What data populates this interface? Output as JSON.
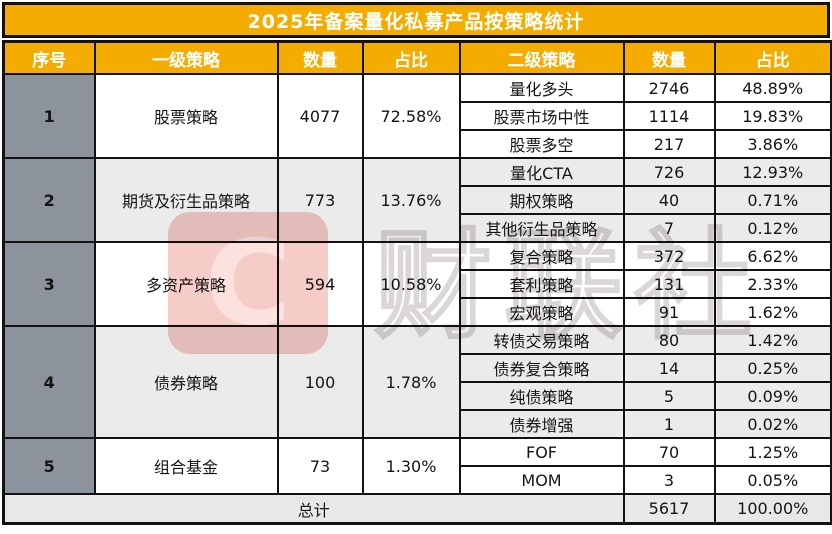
{
  "chart_data": {
    "type": "table",
    "title": "2025年备案量化私募产品按策略统计",
    "columns": [
      "序号",
      "一级策略",
      "数量",
      "占比",
      "二级策略",
      "数量",
      "占比"
    ],
    "groups": [
      {
        "no": "1",
        "strategy": "股票策略",
        "count": 4077,
        "share": "72.58%",
        "subs": [
          [
            "量化多头",
            2746,
            "48.89%"
          ],
          [
            "股票市场中性",
            1114,
            "19.83%"
          ],
          [
            "股票多空",
            217,
            "3.86%"
          ]
        ]
      },
      {
        "no": "2",
        "strategy": "期货及衍生品策略",
        "count": 773,
        "share": "13.76%",
        "subs": [
          [
            "量化CTA",
            726,
            "12.93%"
          ],
          [
            "期权策略",
            40,
            "0.71%"
          ],
          [
            "其他衍生品策略",
            7,
            "0.12%"
          ]
        ]
      },
      {
        "no": "3",
        "strategy": "多资产策略",
        "count": 594,
        "share": "10.58%",
        "subs": [
          [
            "复合策略",
            372,
            "6.62%"
          ],
          [
            "套利策略",
            131,
            "2.33%"
          ],
          [
            "宏观策略",
            91,
            "1.62%"
          ]
        ]
      },
      {
        "no": "4",
        "strategy": "债券策略",
        "count": 100,
        "share": "1.78%",
        "subs": [
          [
            "转债交易策略",
            80,
            "1.42%"
          ],
          [
            "债券复合策略",
            14,
            "0.25%"
          ],
          [
            "纯债策略",
            5,
            "0.09%"
          ],
          [
            "债券增强",
            1,
            "0.02%"
          ]
        ]
      },
      {
        "no": "5",
        "strategy": "组合基金",
        "count": 73,
        "share": "1.30%",
        "subs": [
          [
            "FOF",
            70,
            "1.25%"
          ],
          [
            "MOM",
            3,
            "0.05%"
          ]
        ]
      }
    ],
    "total": {
      "label": "总计",
      "count": 5617,
      "share": "100.00%"
    }
  },
  "watermark": {
    "logo_letter": "C",
    "text": "财联社"
  },
  "colors": {
    "header_bg": "#F5AC00",
    "header_text": "#FFFFFF",
    "seq_col_bg": "#8C939D",
    "shade_row_bg": "#EBEBEB",
    "total_row_bg": "#E8E8E8",
    "border": "#121212",
    "watermark_pink": "#EC8E84"
  }
}
